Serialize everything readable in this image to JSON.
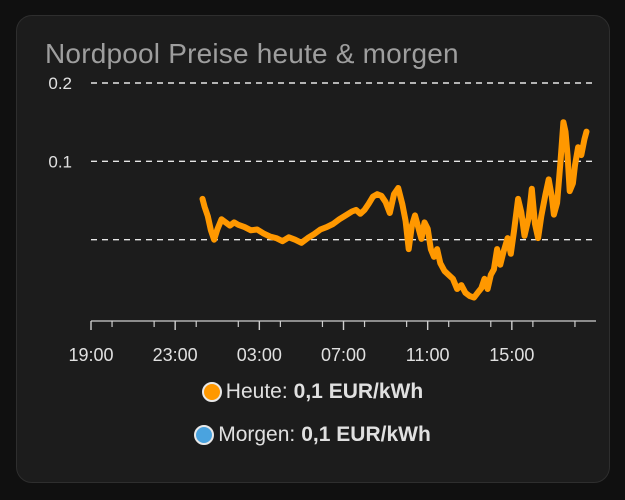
{
  "card": {
    "title": "Nordpool Preise heute & morgen"
  },
  "colors": {
    "heute": "#ff9800",
    "morgen": "#4aa3df",
    "grid": "#e6e6e6",
    "text": "#e0e0e0"
  },
  "legend": [
    {
      "name": "Heute:",
      "value": "0,1 EUR/kWh",
      "color": "#ff9800"
    },
    {
      "name": "Morgen:",
      "value": "0,1 EUR/kWh",
      "color": "#4aa3df"
    }
  ],
  "chart_data": {
    "type": "line",
    "x_tick_labels": [
      "19:00",
      "23:00",
      "03:00",
      "07:00",
      "11:00",
      "15:00"
    ],
    "x_ticks_hours": [
      19,
      23,
      27,
      31,
      35,
      39
    ],
    "x_range_hours": [
      19,
      43
    ],
    "y_ticks": [
      0.2,
      0.1
    ],
    "y_tick_labels": [
      "0.2",
      "0.1"
    ],
    "y_gridlines": [
      0.2,
      0.1,
      0.0
    ],
    "y_range": [
      -0.1,
      0.2
    ],
    "grid": true,
    "legend_position": "bottom",
    "series": [
      {
        "name": "Heute",
        "color": "#ff9800",
        "points": [
          [
            24.3,
            0.052
          ],
          [
            24.4,
            0.042
          ],
          [
            24.55,
            0.03
          ],
          [
            24.7,
            0.012
          ],
          [
            24.85,
            0.0
          ],
          [
            25.0,
            0.013
          ],
          [
            25.2,
            0.026
          ],
          [
            25.4,
            0.022
          ],
          [
            25.6,
            0.018
          ],
          [
            25.8,
            0.022
          ],
          [
            26.0,
            0.019
          ],
          [
            26.3,
            0.016
          ],
          [
            26.6,
            0.012
          ],
          [
            26.9,
            0.013
          ],
          [
            27.2,
            0.008
          ],
          [
            27.5,
            0.004
          ],
          [
            27.8,
            0.002
          ],
          [
            28.1,
            -0.002
          ],
          [
            28.4,
            0.003
          ],
          [
            28.7,
            0.0
          ],
          [
            29.0,
            -0.004
          ],
          [
            29.3,
            0.002
          ],
          [
            29.6,
            0.007
          ],
          [
            29.9,
            0.013
          ],
          [
            30.2,
            0.016
          ],
          [
            30.5,
            0.02
          ],
          [
            30.8,
            0.026
          ],
          [
            31.1,
            0.031
          ],
          [
            31.4,
            0.036
          ],
          [
            31.6,
            0.038
          ],
          [
            31.8,
            0.033
          ],
          [
            32.0,
            0.038
          ],
          [
            32.2,
            0.046
          ],
          [
            32.4,
            0.055
          ],
          [
            32.6,
            0.058
          ],
          [
            32.8,
            0.056
          ],
          [
            33.0,
            0.048
          ],
          [
            33.2,
            0.034
          ],
          [
            33.4,
            0.058
          ],
          [
            33.6,
            0.066
          ],
          [
            33.8,
            0.045
          ],
          [
            33.95,
            0.024
          ],
          [
            34.1,
            -0.012
          ],
          [
            34.25,
            0.018
          ],
          [
            34.4,
            0.031
          ],
          [
            34.55,
            0.016
          ],
          [
            34.7,
            0.001
          ],
          [
            34.85,
            0.022
          ],
          [
            35.0,
            0.014
          ],
          [
            35.15,
            -0.012
          ],
          [
            35.3,
            -0.022
          ],
          [
            35.45,
            -0.012
          ],
          [
            35.6,
            -0.03
          ],
          [
            35.8,
            -0.04
          ],
          [
            36.0,
            -0.045
          ],
          [
            36.2,
            -0.05
          ],
          [
            36.4,
            -0.063
          ],
          [
            36.6,
            -0.058
          ],
          [
            36.8,
            -0.068
          ],
          [
            37.0,
            -0.072
          ],
          [
            37.2,
            -0.074
          ],
          [
            37.4,
            -0.067
          ],
          [
            37.55,
            -0.062
          ],
          [
            37.7,
            -0.05
          ],
          [
            37.85,
            -0.063
          ],
          [
            38.0,
            -0.045
          ],
          [
            38.15,
            -0.038
          ],
          [
            38.3,
            -0.012
          ],
          [
            38.45,
            -0.032
          ],
          [
            38.6,
            -0.016
          ],
          [
            38.8,
            0.002
          ],
          [
            38.95,
            -0.018
          ],
          [
            39.1,
            0.01
          ],
          [
            39.3,
            0.052
          ],
          [
            39.45,
            0.035
          ],
          [
            39.6,
            0.005
          ],
          [
            39.8,
            0.028
          ],
          [
            39.95,
            0.065
          ],
          [
            40.1,
            0.02
          ],
          [
            40.25,
            0.002
          ],
          [
            40.4,
            0.03
          ],
          [
            40.6,
            0.058
          ],
          [
            40.75,
            0.077
          ],
          [
            40.9,
            0.055
          ],
          [
            41.0,
            0.032
          ],
          [
            41.15,
            0.047
          ],
          [
            41.3,
            0.095
          ],
          [
            41.45,
            0.15
          ],
          [
            41.55,
            0.138
          ],
          [
            41.65,
            0.107
          ],
          [
            41.75,
            0.062
          ],
          [
            41.9,
            0.072
          ],
          [
            42.0,
            0.095
          ],
          [
            42.15,
            0.118
          ],
          [
            42.3,
            0.108
          ],
          [
            42.45,
            0.128
          ],
          [
            42.55,
            0.138
          ]
        ]
      }
    ]
  }
}
